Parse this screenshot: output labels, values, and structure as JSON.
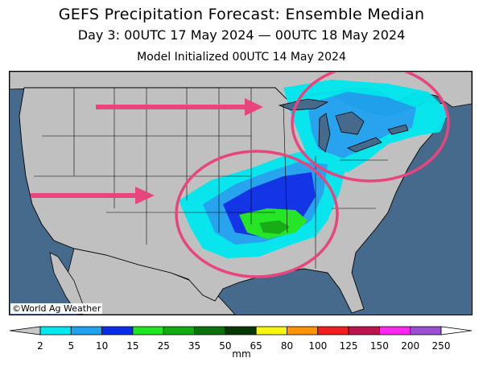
{
  "title": "GEFS Precipitation Forecast: Ensemble Median",
  "subtitle": "Day 3: 00UTC 17 May 2024 — 00UTC 18 May 2024",
  "init_line": "Model Initialized 00UTC 14 May 2024",
  "credit": "©World Ag Weather",
  "legend": {
    "units": "mm",
    "tick_labels": [
      "2",
      "5",
      "10",
      "15",
      "25",
      "35",
      "50",
      "65",
      "80",
      "100",
      "125",
      "150",
      "200",
      "250"
    ],
    "colors": [
      "#00e8ef",
      "#1fa3f0",
      "#0a2ee8",
      "#1ee61e",
      "#11ab11",
      "#0a720a",
      "#063806",
      "#f5f510",
      "#ff9400",
      "#f11f1f",
      "#bb1550",
      "#ff27ef",
      "#9a4fd1"
    ],
    "below_color": "#c8c8c8",
    "above_color": "#ffffff"
  },
  "map": {
    "region": "Continental United States",
    "land_color": "#c0c0c0",
    "water_color": "#466a8b",
    "annotation_color": "#e8457f",
    "annotations": [
      "circle-great-lakes",
      "circle-southern-plains",
      "arrow-north",
      "arrow-south"
    ]
  }
}
